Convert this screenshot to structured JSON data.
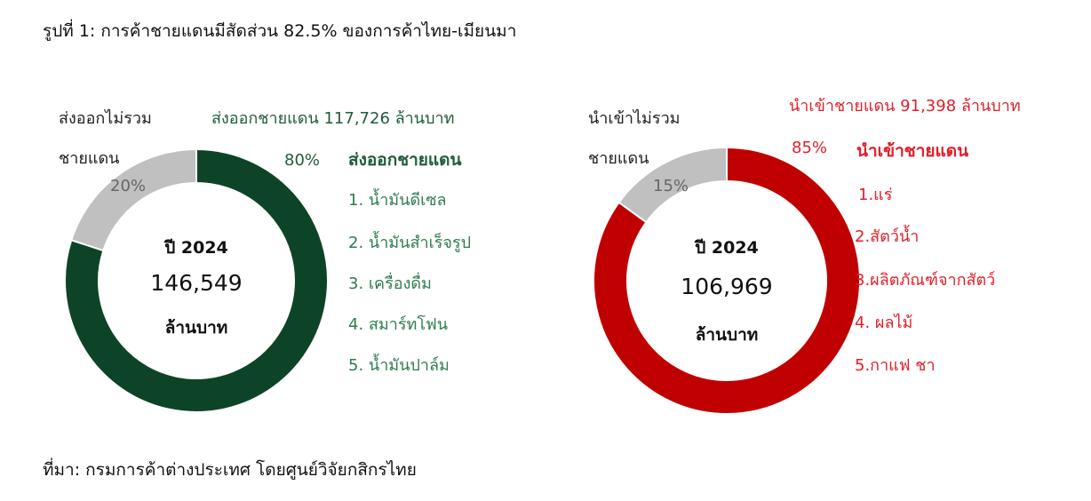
{
  "figure_title": "รูปที่ 1: การค้าชายแดนมีสัดส่วน 82.5% ของการค้าไทย-เมียนมา",
  "source": "ที่มา: กรมการค้าต่างประเทศ โดยศูนย์วิจัยกสิกรไทย",
  "colors": {
    "export_border": "#0d4427",
    "import_border": "#c00000",
    "non_border": "#c0c0c0",
    "export_text": "#1f5c3a",
    "import_text": "#e0202a"
  },
  "chart_data": [
    {
      "type": "pie",
      "donut": true,
      "slices": [
        {
          "label": "ส่งออกชายแดน",
          "value": 80,
          "value_label": "80%",
          "color": "#0d4427"
        },
        {
          "label": "ส่งออกไม่รวมชายแดน",
          "value": 20,
          "value_label": "20%",
          "color": "#c0c0c0"
        }
      ],
      "annotations": {
        "border_amount": "ส่งออกชายแดน 117,726 ล้านบาท",
        "non_border_label_line1": "ส่งออกไม่รวม",
        "non_border_label_line2": "ชายแดน"
      },
      "center": {
        "year": "ปี 2024",
        "value": "146,549",
        "unit": "ล้านบาท"
      },
      "list": {
        "title": "ส่งออกชายแดน",
        "items": [
          "1. น้ำมันดีเซล",
          "2. น้ำมันสำเร็จรูป",
          "3. เครื่องดื่ม",
          "4. สมาร์ทโฟน",
          "5. น้ำมันปาล์ม"
        ]
      }
    },
    {
      "type": "pie",
      "donut": true,
      "slices": [
        {
          "label": "นำเข้าชายแดน",
          "value": 85,
          "value_label": "85%",
          "color": "#c00000"
        },
        {
          "label": "นำเข้าไม่รวมชายแดน",
          "value": 15,
          "value_label": "15%",
          "color": "#c0c0c0"
        }
      ],
      "annotations": {
        "border_amount": "นำเข้าชายแดน 91,398 ล้านบาท",
        "non_border_label_line1": "นำเข้าไม่รวม",
        "non_border_label_line2": "ชายแดน"
      },
      "center": {
        "year": "ปี 2024",
        "value": "106,969",
        "unit": "ล้านบาท"
      },
      "list": {
        "title": "นำเข้าชายแดน",
        "items": [
          "1.แร่",
          "2.สัตว์น้ำ",
          "3.ผลิตภัณฑ์จากสัตว์",
          "4. ผลไม้",
          "5.กาแฟ ชา"
        ]
      }
    }
  ]
}
